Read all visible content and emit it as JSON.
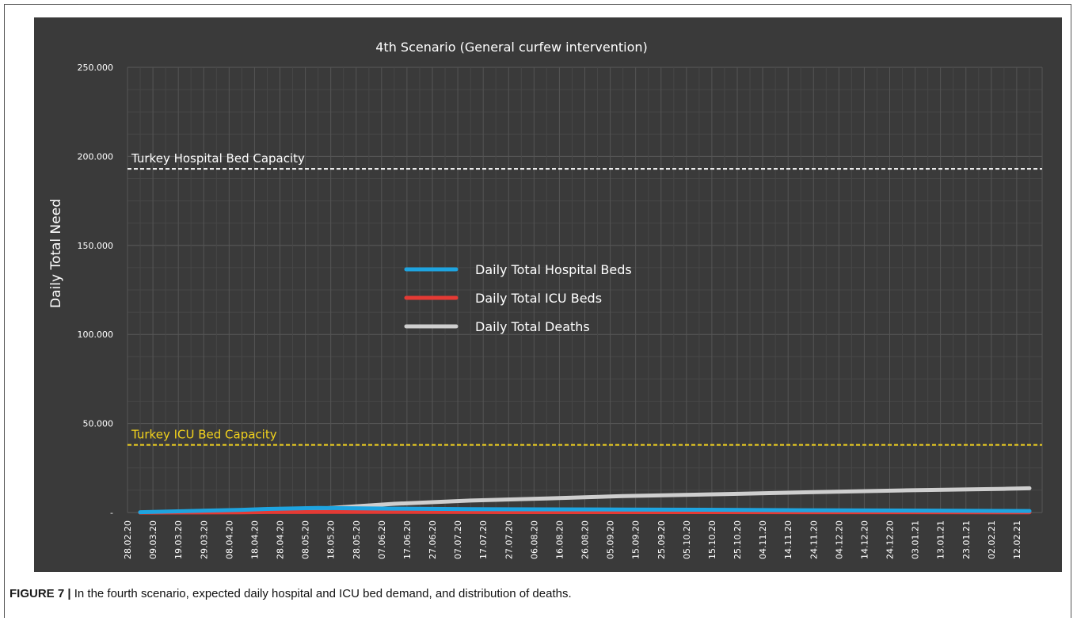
{
  "caption": {
    "label": "FIGURE 7 |",
    "text": "In the fourth scenario, expected daily hospital and ICU bed demand, and distribution of deaths."
  },
  "chart_data": {
    "type": "line",
    "title": "4th Scenario (General curfew intervention)",
    "ylabel": "Daily Total Need",
    "xlabel": "",
    "ylim": [
      0,
      250000
    ],
    "yticks": [
      {
        "value": 0,
        "label": "-"
      },
      {
        "value": 50000,
        "label": "50.000"
      },
      {
        "value": 100000,
        "label": "100.000"
      },
      {
        "value": 150000,
        "label": "150.000"
      },
      {
        "value": 200000,
        "label": "200.000"
      },
      {
        "value": 250000,
        "label": "250.000"
      }
    ],
    "x_tick_labels": [
      "28.02.20",
      "09.03.20",
      "19.03.20",
      "29.03.20",
      "08.04.20",
      "18.04.20",
      "28.04.20",
      "08.05.20",
      "18.05.20",
      "28.05.20",
      "07.06.20",
      "17.06.20",
      "27.06.20",
      "07.07.20",
      "17.07.20",
      "27.07.20",
      "06.08.20",
      "16.08.20",
      "26.08.20",
      "05.09.20",
      "15.09.20",
      "25.09.20",
      "05.10.20",
      "15.10.20",
      "25.10.20",
      "04.11.20",
      "14.11.20",
      "24.11.20",
      "04.12.20",
      "14.12.20",
      "24.12.20",
      "03.01.21",
      "13.01.21",
      "23.01.21",
      "02.02.21",
      "12.02.21"
    ],
    "grid": true,
    "legend_position": "center",
    "reference_lines": [
      {
        "name": "Turkey Hospital Bed Capacity",
        "value": 193000,
        "color": "#ffffff"
      },
      {
        "name": "Turkey ICU Bed Capacity",
        "value": 38000,
        "color": "#f2d21c"
      }
    ],
    "x": [
      "28.02.20",
      "08.04.20",
      "18.04.20",
      "08.05.20",
      "07.06.20",
      "07.07.20",
      "06.08.20",
      "05.09.20",
      "15.10.20",
      "14.11.20",
      "24.12.20",
      "02.02.21",
      "12.02.21"
    ],
    "series": [
      {
        "name": "Daily Total Hospital Beds",
        "color": "#1ea4e0",
        "values": [
          200,
          1500,
          2000,
          2600,
          2200,
          1900,
          1800,
          1700,
          1500,
          1300,
          1100,
          900,
          850
        ]
      },
      {
        "name": "Daily Total ICU Beds",
        "color": "#e53a34",
        "values": [
          0,
          150,
          250,
          320,
          300,
          260,
          240,
          230,
          210,
          190,
          170,
          150,
          140
        ]
      },
      {
        "name": "Daily Total Deaths",
        "color": "#cfcfcf",
        "values": [
          0,
          800,
          1300,
          2100,
          4900,
          6700,
          7900,
          9200,
          10300,
          11300,
          12400,
          13300,
          13600
        ]
      }
    ]
  }
}
